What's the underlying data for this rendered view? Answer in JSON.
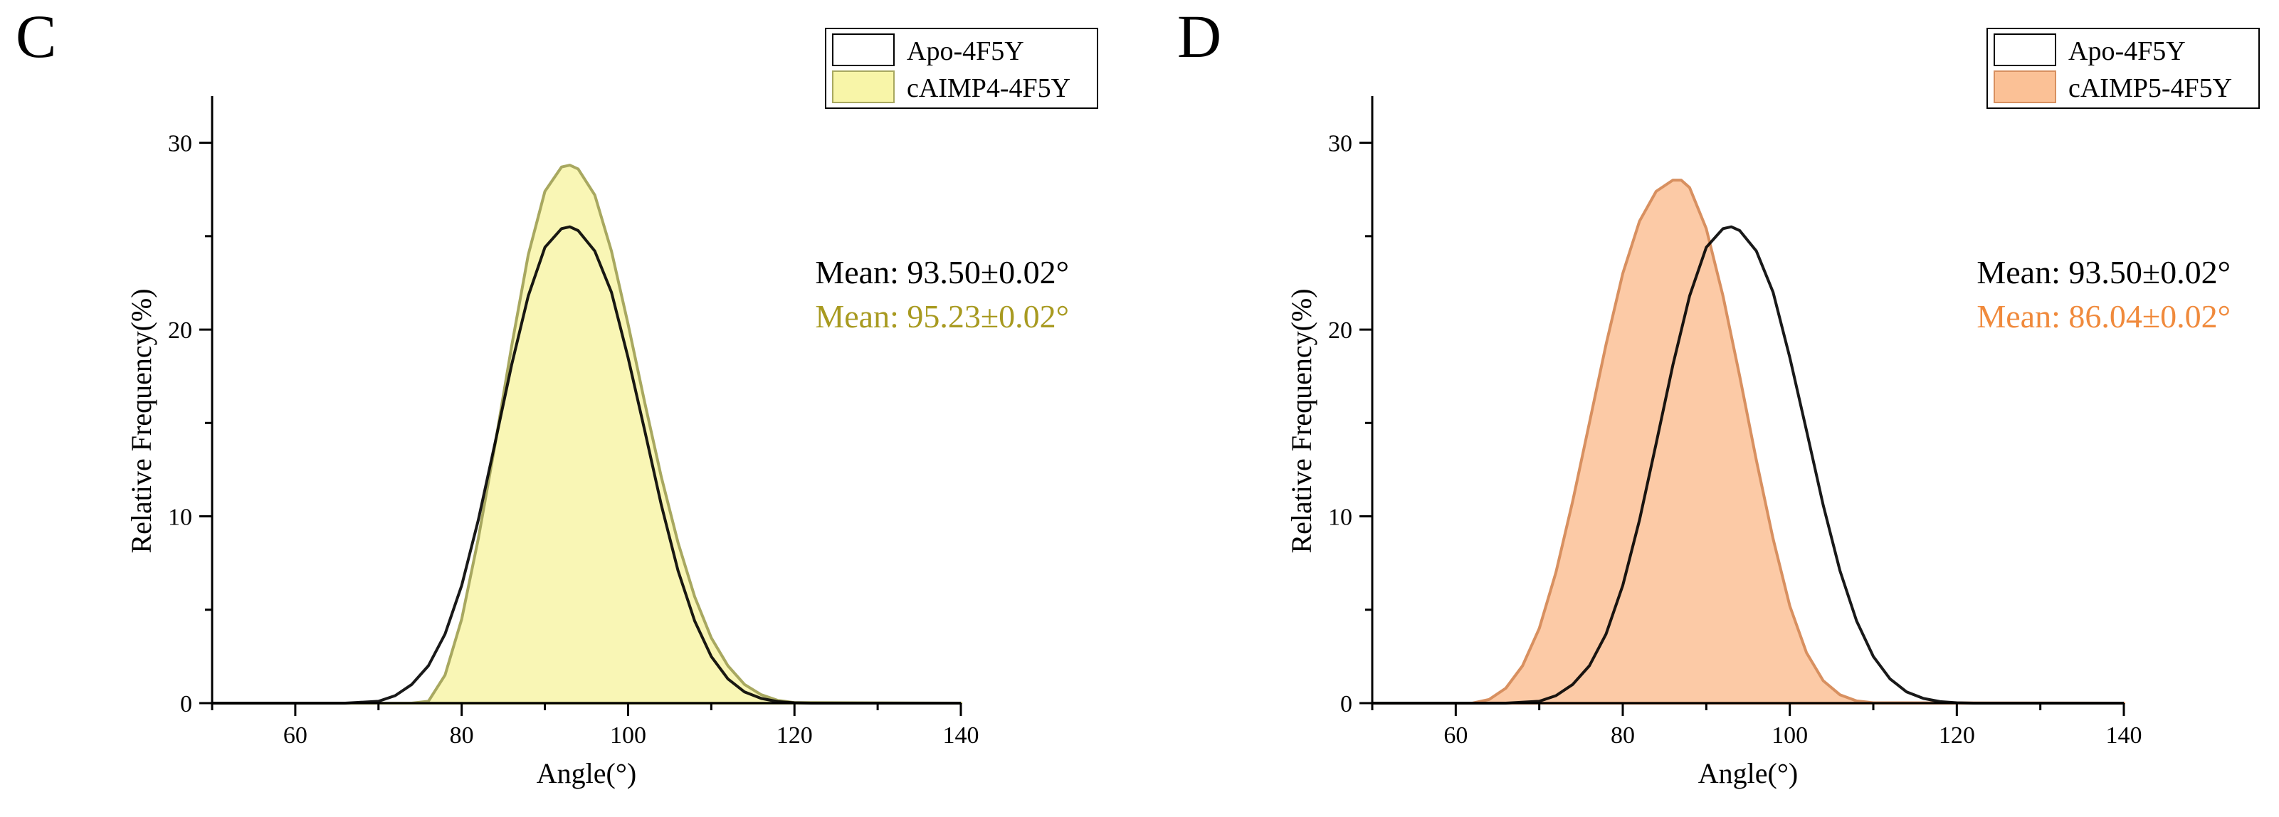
{
  "chart_data": [
    {
      "panel_label": "C",
      "type": "area",
      "xlabel": "Angle(°)",
      "ylabel": "Relative Frequency(%)",
      "xlim": [
        50,
        140
      ],
      "ylim": [
        0,
        32.5
      ],
      "x_ticks": [
        60,
        80,
        100,
        120,
        140
      ],
      "y_ticks": [
        0,
        10,
        20,
        30
      ],
      "legend": {
        "position": "top-right",
        "items": [
          "Apo-4F5Y",
          "cAIMP4-4F5Y"
        ]
      },
      "annotations": [
        {
          "text": "Mean: 93.50±0.02°",
          "color": "#000000"
        },
        {
          "text": "Mean: 95.23±0.02°",
          "color": "#a89a20"
        }
      ],
      "series": [
        {
          "name": "Apo-4F5Y",
          "style": "line",
          "color": "#000000",
          "x": [
            50,
            66,
            70,
            72,
            74,
            76,
            78,
            80,
            82,
            84,
            86,
            88,
            90,
            92,
            93,
            94,
            96,
            98,
            100,
            102,
            104,
            106,
            108,
            110,
            112,
            114,
            116,
            118,
            120,
            122,
            140
          ],
          "y": [
            0,
            0,
            0.1,
            0.4,
            1,
            2,
            3.7,
            6.3,
            9.8,
            13.9,
            18.1,
            21.8,
            24.4,
            25.4,
            25.5,
            25.3,
            24.2,
            22,
            18.5,
            14.6,
            10.6,
            7.1,
            4.4,
            2.5,
            1.3,
            0.6,
            0.25,
            0.08,
            0.02,
            0,
            0
          ]
        },
        {
          "name": "cAIMP4-4F5Y",
          "style": "area",
          "color": "#a8a860",
          "fill": "#f8f5a8",
          "x": [
            50,
            74,
            76,
            78,
            80,
            82,
            84,
            86,
            88,
            90,
            92,
            93,
            94,
            96,
            98,
            100,
            102,
            104,
            106,
            108,
            110,
            112,
            114,
            116,
            118,
            120,
            140
          ],
          "y": [
            0,
            0,
            0.1,
            1.5,
            4.5,
            8.8,
            13.8,
            19.1,
            24,
            27.4,
            28.7,
            28.8,
            28.6,
            27.2,
            24.2,
            20.3,
            16.1,
            12.1,
            8.6,
            5.7,
            3.5,
            2,
            1,
            0.45,
            0.15,
            0.03,
            0
          ]
        }
      ]
    },
    {
      "panel_label": "D",
      "type": "area",
      "xlabel": "Angle(°)",
      "ylabel": "Relative Frequency(%)",
      "xlim": [
        50,
        140
      ],
      "ylim": [
        0,
        32.5
      ],
      "x_ticks": [
        60,
        80,
        100,
        120,
        140
      ],
      "y_ticks": [
        0,
        10,
        20,
        30
      ],
      "legend": {
        "position": "top-right",
        "items": [
          "Apo-4F5Y",
          "cAIMP5-4F5Y"
        ]
      },
      "annotations": [
        {
          "text": "Mean: 93.50±0.02°",
          "color": "#000000"
        },
        {
          "text": "Mean: 86.04±0.02°",
          "color": "#f08a3c"
        }
      ],
      "series": [
        {
          "name": "Apo-4F5Y",
          "style": "line",
          "color": "#000000",
          "x": [
            50,
            66,
            70,
            72,
            74,
            76,
            78,
            80,
            82,
            84,
            86,
            88,
            90,
            92,
            93,
            94,
            96,
            98,
            100,
            102,
            104,
            106,
            108,
            110,
            112,
            114,
            116,
            118,
            120,
            122,
            140
          ],
          "y": [
            0,
            0,
            0.1,
            0.4,
            1,
            2,
            3.7,
            6.3,
            9.8,
            13.9,
            18.1,
            21.8,
            24.4,
            25.4,
            25.5,
            25.3,
            24.2,
            22,
            18.5,
            14.6,
            10.6,
            7.1,
            4.4,
            2.5,
            1.3,
            0.6,
            0.25,
            0.08,
            0.02,
            0,
            0
          ]
        },
        {
          "name": "cAIMP5-4F5Y",
          "style": "area",
          "color": "#d89060",
          "fill": "#fbc196",
          "x": [
            50,
            62,
            64,
            66,
            68,
            70,
            72,
            74,
            76,
            78,
            80,
            82,
            84,
            86,
            87,
            88,
            90,
            92,
            94,
            96,
            98,
            100,
            102,
            104,
            106,
            108,
            110,
            140
          ],
          "y": [
            0,
            0,
            0.2,
            0.8,
            2,
            4,
            7,
            10.8,
            15,
            19.2,
            23,
            25.8,
            27.4,
            28,
            28,
            27.6,
            25.4,
            21.8,
            17.5,
            13,
            8.8,
            5.2,
            2.7,
            1.2,
            0.45,
            0.12,
            0.02,
            0
          ]
        }
      ]
    }
  ]
}
